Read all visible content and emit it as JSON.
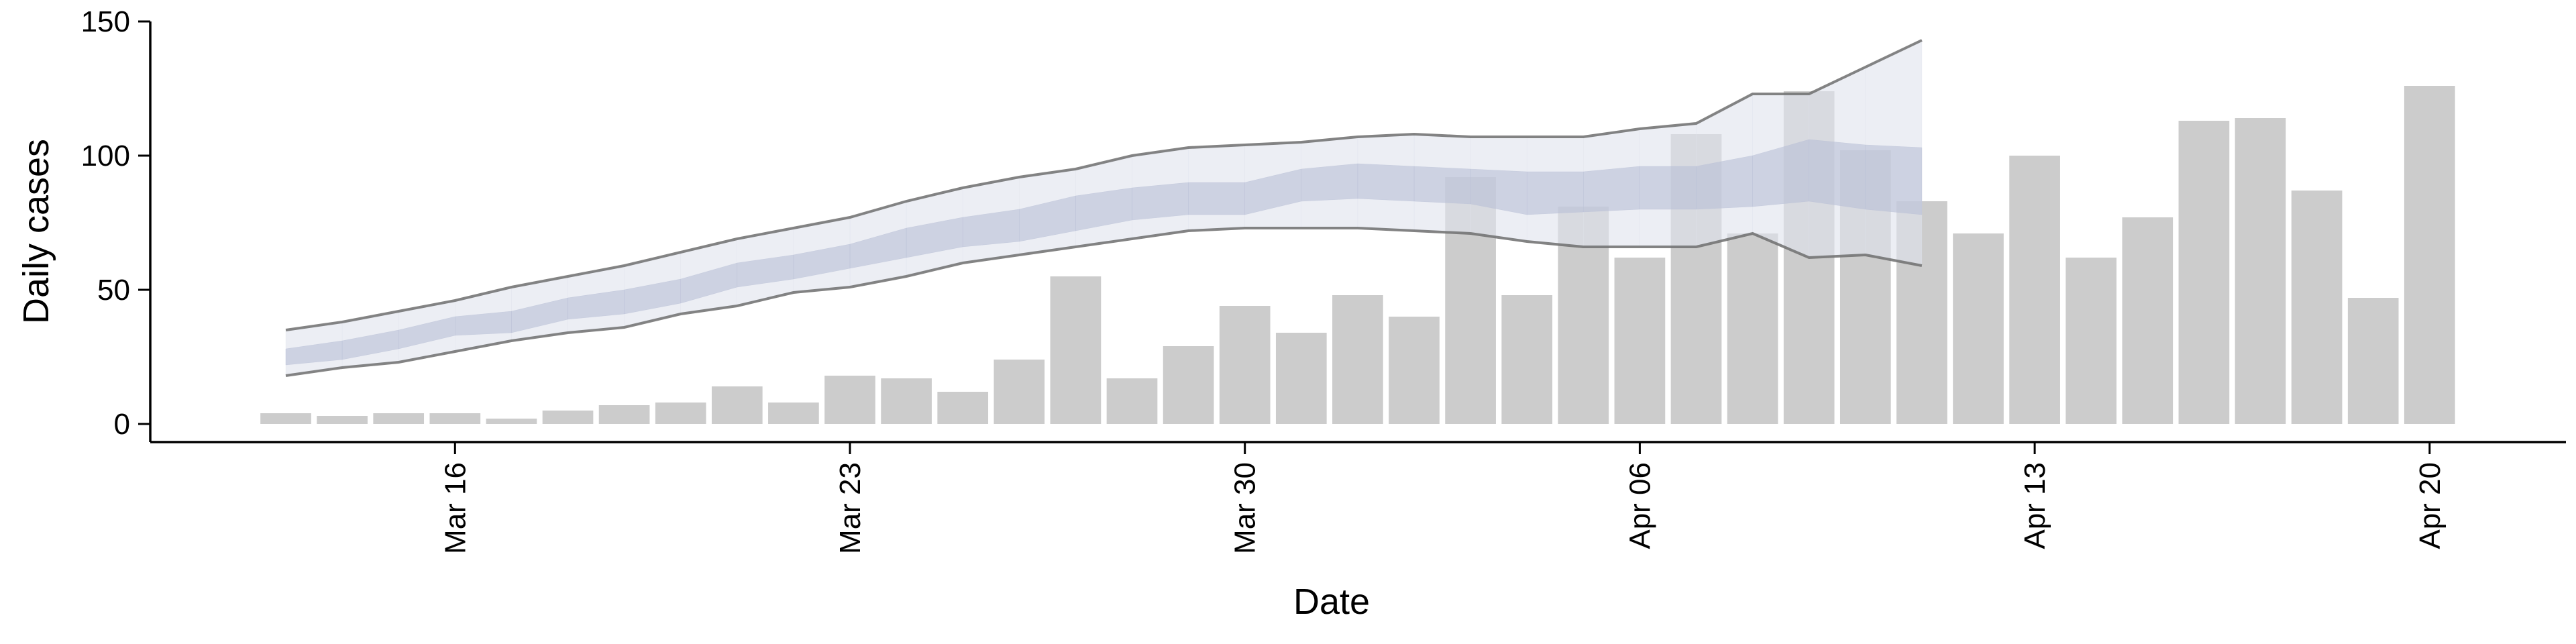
{
  "chart_data": {
    "type": "bar",
    "xlabel": "Date",
    "ylabel": "Daily cases",
    "categories": [
      null,
      null,
      null,
      "Mar 16",
      null,
      null,
      null,
      null,
      null,
      null,
      "Mar 23",
      null,
      null,
      null,
      null,
      null,
      null,
      "Mar 30",
      null,
      null,
      null,
      null,
      null,
      null,
      "Apr 06",
      null,
      null,
      null,
      null,
      null,
      null,
      "Apr 13",
      null,
      null,
      null,
      null,
      null,
      null,
      "Apr 20"
    ],
    "ylim": [
      0,
      150
    ],
    "yticks": [
      0,
      50,
      100,
      150
    ],
    "series": [
      {
        "type": "bar",
        "color": "#cccccc",
        "values": [
          4,
          3,
          4,
          4,
          2,
          5,
          7,
          8,
          14,
          8,
          18,
          17,
          12,
          24,
          55,
          17,
          29,
          44,
          34,
          48,
          40,
          92,
          48,
          81,
          62,
          108,
          71,
          124,
          102,
          83,
          71,
          100,
          62,
          77,
          113,
          114,
          87,
          47,
          126
        ]
      },
      {
        "type": "band",
        "color": "#dfe2ec",
        "edge_color": "#6e6e6e",
        "upper": [
          35,
          38,
          42,
          46,
          51,
          55,
          59,
          64,
          69,
          73,
          77,
          83,
          88,
          92,
          95,
          100,
          103,
          104,
          105,
          107,
          108,
          107,
          107,
          107,
          110,
          112,
          123,
          123,
          133,
          143,
          null,
          null,
          null,
          null,
          null,
          null,
          null,
          null,
          null
        ],
        "lower": [
          18,
          21,
          23,
          27,
          31,
          34,
          36,
          41,
          44,
          49,
          51,
          55,
          60,
          63,
          66,
          69,
          72,
          73,
          73,
          73,
          72,
          71,
          68,
          66,
          66,
          66,
          71,
          62,
          63,
          59,
          null,
          null,
          null,
          null,
          null,
          null,
          null,
          null,
          null
        ]
      },
      {
        "type": "band",
        "color": "#b9bfd6",
        "upper": [
          28,
          31,
          35,
          40,
          42,
          47,
          50,
          54,
          60,
          63,
          67,
          73,
          77,
          80,
          85,
          88,
          90,
          90,
          95,
          97,
          96,
          95,
          94,
          94,
          96,
          96,
          100,
          106,
          104,
          103,
          null,
          null,
          null,
          null,
          null,
          null,
          null,
          null,
          null
        ],
        "lower": [
          22,
          24,
          28,
          33,
          34,
          39,
          41,
          45,
          51,
          54,
          58,
          62,
          66,
          68,
          72,
          76,
          78,
          78,
          83,
          84,
          83,
          82,
          78,
          79,
          80,
          80,
          81,
          83,
          80,
          78,
          null,
          null,
          null,
          null,
          null,
          null,
          null,
          null,
          null
        ]
      }
    ]
  }
}
